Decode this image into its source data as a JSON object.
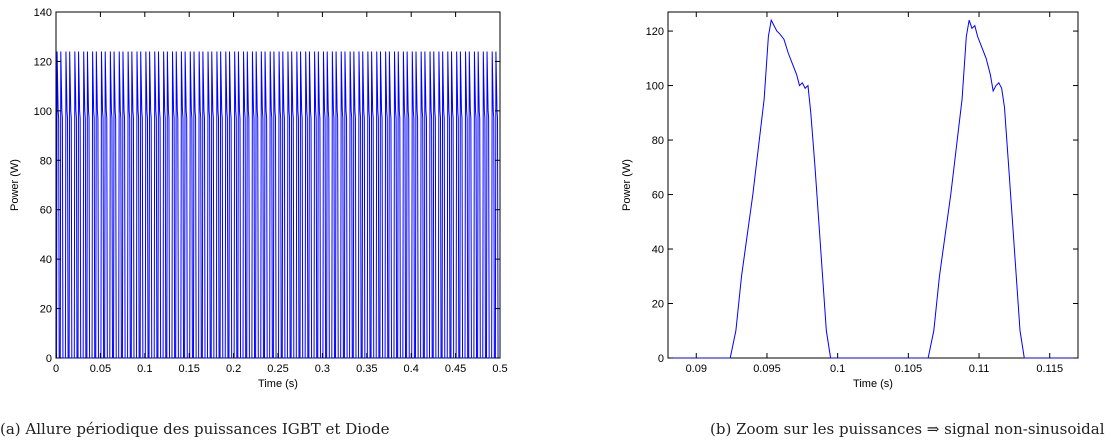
{
  "captions": {
    "a": "(a)  Allure périodique des puissances IGBT et Diode",
    "b": "(b)  Zoom sur les puissances ⇒ signal non-sinusoidal"
  },
  "chart_data": [
    {
      "type": "line",
      "xlabel": "Time (s)",
      "ylabel": "Power (W)",
      "xlim": [
        0,
        0.5
      ],
      "ylim": [
        0,
        140
      ],
      "xticks": [
        0,
        0.05,
        0.1,
        0.15,
        0.2,
        0.25,
        0.3,
        0.35,
        0.4,
        0.45,
        0.5
      ],
      "xtick_labels": [
        "0",
        "0.05",
        "0.1",
        "0.15",
        "0.2",
        "0.25",
        "0.3",
        "0.35",
        "0.4",
        "0.45",
        "0.5"
      ],
      "yticks": [
        0,
        20,
        40,
        60,
        80,
        100,
        120,
        140
      ],
      "ytick_labels": [
        "0",
        "20",
        "40",
        "60",
        "80",
        "100",
        "120",
        "140"
      ],
      "grid": false,
      "series": [
        {
          "color": "#0000ff",
          "period": 0.01,
          "pulse_points": [
            [
              0,
              0
            ],
            [
              0.0006,
              0
            ],
            [
              0.0012,
              124
            ],
            [
              0.0024,
              100
            ],
            [
              0.003,
              97
            ],
            [
              0.0036,
              0
            ],
            [
              0.0048,
              0
            ],
            [
              0.0054,
              124
            ],
            [
              0.0066,
              100
            ],
            [
              0.0072,
              97
            ],
            [
              0.0078,
              0
            ],
            [
              0.01,
              0
            ]
          ]
        }
      ]
    },
    {
      "type": "line",
      "xlabel": "Time (s)",
      "ylabel": "Power (W)",
      "xlim": [
        0.088,
        0.117
      ],
      "ylim": [
        0,
        127
      ],
      "xticks": [
        0.09,
        0.095,
        0.1,
        0.105,
        0.11,
        0.115
      ],
      "xtick_labels": [
        "0.09",
        "0.095",
        "0.1",
        "0.105",
        "0.11",
        "0.115"
      ],
      "yticks": [
        0,
        20,
        40,
        60,
        80,
        100,
        120
      ],
      "ytick_labels": [
        "0",
        "20",
        "40",
        "60",
        "80",
        "100",
        "120"
      ],
      "grid": false,
      "series": [
        {
          "color": "#0000ff",
          "points": [
            [
              0.088,
              0
            ],
            [
              0.0924,
              0
            ],
            [
              0.0928,
              10
            ],
            [
              0.0932,
              30
            ],
            [
              0.094,
              60
            ],
            [
              0.0948,
              95
            ],
            [
              0.0951,
              118
            ],
            [
              0.0953,
              124
            ],
            [
              0.0955,
              122
            ],
            [
              0.0957,
              120
            ],
            [
              0.0959,
              119
            ],
            [
              0.0962,
              117
            ],
            [
              0.0965,
              112
            ],
            [
              0.0968,
              108
            ],
            [
              0.0971,
              104
            ],
            [
              0.0973,
              100
            ],
            [
              0.0975,
              101
            ],
            [
              0.0977,
              99
            ],
            [
              0.0979,
              100
            ],
            [
              0.0981,
              90
            ],
            [
              0.0984,
              70
            ],
            [
              0.0988,
              40
            ],
            [
              0.0992,
              10
            ],
            [
              0.0995,
              0
            ],
            [
              0.1064,
              0
            ],
            [
              0.1068,
              10
            ],
            [
              0.1072,
              30
            ],
            [
              0.108,
              60
            ],
            [
              0.1088,
              95
            ],
            [
              0.1091,
              118
            ],
            [
              0.1093,
              124
            ],
            [
              0.1095,
              121
            ],
            [
              0.1097,
              122
            ],
            [
              0.1099,
              118
            ],
            [
              0.1102,
              114
            ],
            [
              0.1105,
              110
            ],
            [
              0.1108,
              104
            ],
            [
              0.111,
              98
            ],
            [
              0.1112,
              100
            ],
            [
              0.1114,
              101
            ],
            [
              0.1116,
              99
            ],
            [
              0.1118,
              92
            ],
            [
              0.1121,
              70
            ],
            [
              0.1125,
              40
            ],
            [
              0.1129,
              10
            ],
            [
              0.1132,
              0
            ],
            [
              0.117,
              0
            ]
          ]
        }
      ]
    }
  ]
}
